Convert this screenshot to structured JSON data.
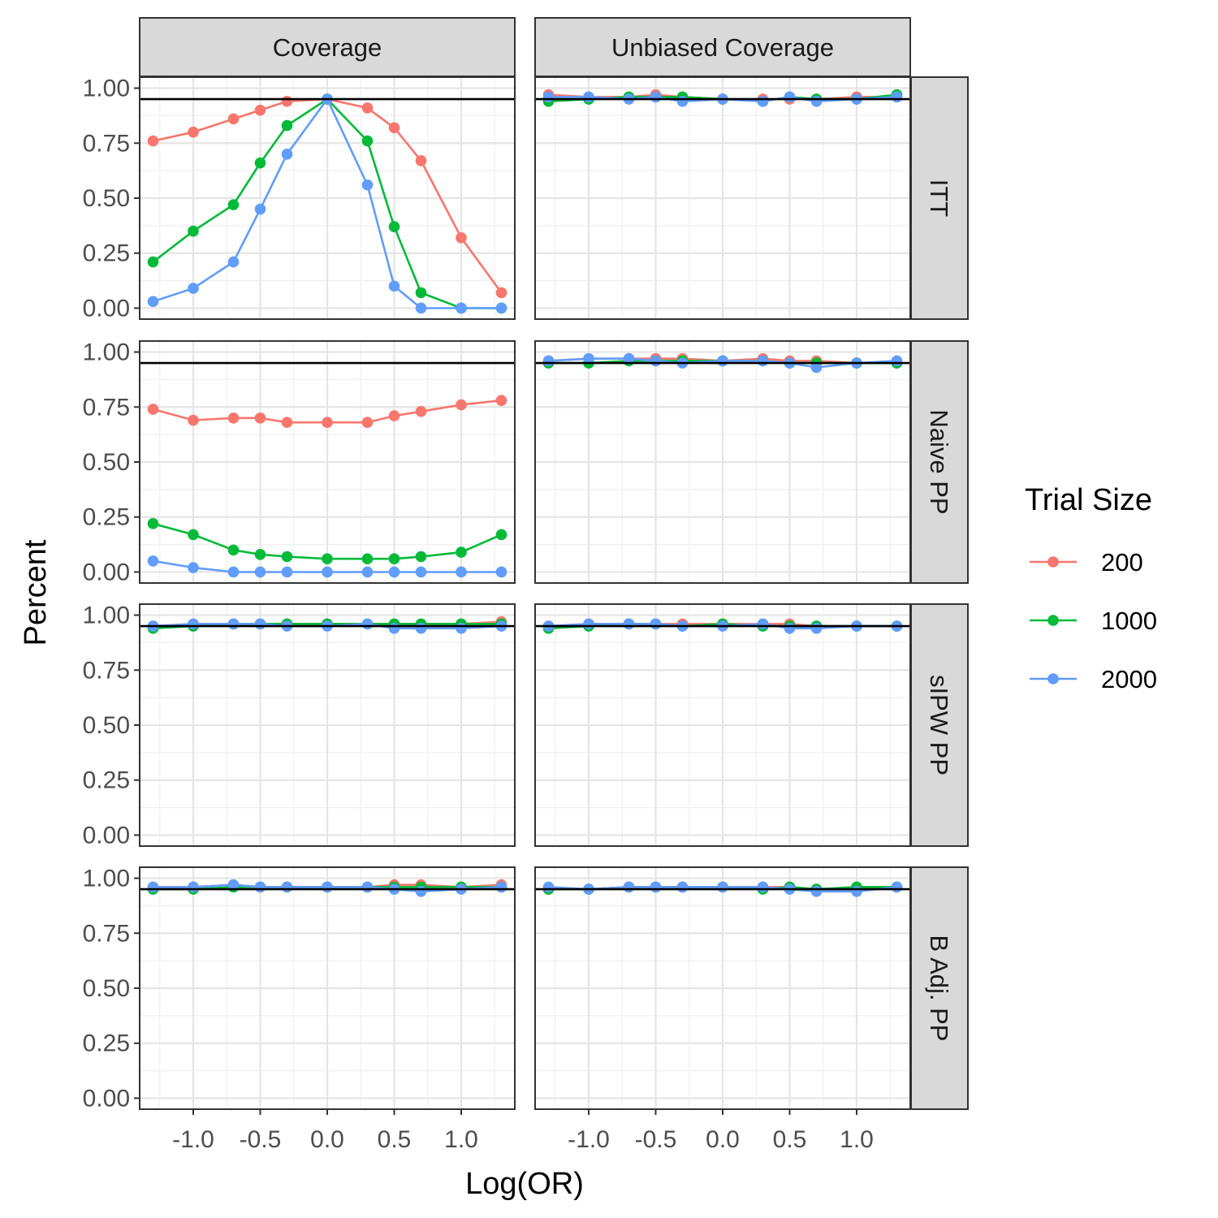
{
  "chart_data": {
    "type": "line",
    "xlabel": "Log(OR)",
    "ylabel": "Percent",
    "x_ticks": [
      "-1.0",
      "-0.5",
      "0.0",
      "0.5",
      "1.0"
    ],
    "x_tick_values": [
      -1.0,
      -0.5,
      0.0,
      0.5,
      1.0
    ],
    "y_ticks": [
      "0.00",
      "0.25",
      "0.50",
      "0.75",
      "1.00"
    ],
    "y_tick_values": [
      0.0,
      0.25,
      0.5,
      0.75,
      1.0
    ],
    "xlim": [
      -1.4,
      1.4
    ],
    "ylim": [
      -0.05,
      1.05
    ],
    "reference_line": 0.95,
    "grid": true,
    "columns": [
      "Coverage",
      "Unbiased Coverage"
    ],
    "rows": [
      "ITT",
      "Naive PP",
      "sIPW PP",
      "B Adj. PP"
    ],
    "legend": {
      "title": "Trial Size",
      "position": "right",
      "entries": [
        {
          "label": "200",
          "color": "#F8766D"
        },
        {
          "label": "1000",
          "color": "#00BA38"
        },
        {
          "label": "2000",
          "color": "#619CFF"
        }
      ]
    },
    "x": [
      -1.3,
      -1.0,
      -0.7,
      -0.5,
      -0.3,
      0.0,
      0.3,
      0.5,
      0.7,
      1.0,
      1.3
    ],
    "panels": [
      {
        "row": "ITT",
        "col": "Coverage",
        "series": [
          {
            "name": "200",
            "values": [
              0.76,
              0.8,
              0.86,
              0.9,
              0.94,
              0.95,
              0.91,
              0.82,
              0.67,
              0.32,
              0.07
            ]
          },
          {
            "name": "1000",
            "values": [
              0.21,
              0.35,
              0.47,
              0.66,
              0.83,
              0.95,
              0.76,
              0.37,
              0.07,
              0.0,
              0.0
            ]
          },
          {
            "name": "2000",
            "values": [
              0.03,
              0.09,
              0.21,
              0.45,
              0.7,
              0.95,
              0.56,
              0.1,
              0.0,
              0.0,
              0.0
            ]
          }
        ]
      },
      {
        "row": "ITT",
        "col": "Unbiased Coverage",
        "series": [
          {
            "name": "200",
            "values": [
              0.97,
              0.96,
              0.96,
              0.97,
              0.96,
              0.95,
              0.95,
              0.95,
              0.95,
              0.96,
              0.96
            ]
          },
          {
            "name": "1000",
            "values": [
              0.94,
              0.95,
              0.96,
              0.96,
              0.96,
              0.95,
              0.94,
              0.96,
              0.95,
              0.95,
              0.97
            ]
          },
          {
            "name": "2000",
            "values": [
              0.96,
              0.96,
              0.95,
              0.96,
              0.94,
              0.95,
              0.94,
              0.96,
              0.94,
              0.95,
              0.96
            ]
          }
        ]
      },
      {
        "row": "Naive PP",
        "col": "Coverage",
        "series": [
          {
            "name": "200",
            "values": [
              0.74,
              0.69,
              0.7,
              0.7,
              0.68,
              0.68,
              0.68,
              0.71,
              0.73,
              0.76,
              0.78
            ]
          },
          {
            "name": "1000",
            "values": [
              0.22,
              0.17,
              0.1,
              0.08,
              0.07,
              0.06,
              0.06,
              0.06,
              0.07,
              0.09,
              0.17
            ]
          },
          {
            "name": "2000",
            "values": [
              0.05,
              0.02,
              0.0,
              0.0,
              0.0,
              0.0,
              0.0,
              0.0,
              0.0,
              0.0,
              0.0
            ]
          }
        ]
      },
      {
        "row": "Naive PP",
        "col": "Unbiased Coverage",
        "series": [
          {
            "name": "200",
            "values": [
              0.96,
              0.97,
              0.97,
              0.97,
              0.97,
              0.96,
              0.97,
              0.96,
              0.96,
              0.95,
              0.95
            ]
          },
          {
            "name": "1000",
            "values": [
              0.95,
              0.95,
              0.96,
              0.96,
              0.96,
              0.96,
              0.96,
              0.95,
              0.95,
              0.95,
              0.95
            ]
          },
          {
            "name": "2000",
            "values": [
              0.96,
              0.97,
              0.97,
              0.96,
              0.95,
              0.96,
              0.96,
              0.95,
              0.93,
              0.95,
              0.96
            ]
          }
        ]
      },
      {
        "row": "sIPW PP",
        "col": "Coverage",
        "series": [
          {
            "name": "200",
            "values": [
              0.95,
              0.96,
              0.96,
              0.96,
              0.96,
              0.96,
              0.96,
              0.96,
              0.96,
              0.96,
              0.97
            ]
          },
          {
            "name": "1000",
            "values": [
              0.94,
              0.95,
              0.96,
              0.96,
              0.96,
              0.96,
              0.96,
              0.96,
              0.96,
              0.96,
              0.96
            ]
          },
          {
            "name": "2000",
            "values": [
              0.95,
              0.96,
              0.96,
              0.96,
              0.95,
              0.95,
              0.96,
              0.94,
              0.94,
              0.94,
              0.95
            ]
          }
        ]
      },
      {
        "row": "sIPW PP",
        "col": "Unbiased Coverage",
        "series": [
          {
            "name": "200",
            "values": [
              0.95,
              0.96,
              0.96,
              0.96,
              0.96,
              0.96,
              0.96,
              0.96,
              0.95,
              0.95,
              0.95
            ]
          },
          {
            "name": "1000",
            "values": [
              0.94,
              0.95,
              0.96,
              0.96,
              0.95,
              0.96,
              0.95,
              0.95,
              0.95,
              0.95,
              0.95
            ]
          },
          {
            "name": "2000",
            "values": [
              0.95,
              0.96,
              0.96,
              0.96,
              0.95,
              0.95,
              0.96,
              0.94,
              0.94,
              0.95,
              0.95
            ]
          }
        ]
      },
      {
        "row": "B Adj. PP",
        "col": "Coverage",
        "series": [
          {
            "name": "200",
            "values": [
              0.96,
              0.96,
              0.97,
              0.96,
              0.96,
              0.96,
              0.96,
              0.97,
              0.97,
              0.96,
              0.97
            ]
          },
          {
            "name": "1000",
            "values": [
              0.95,
              0.95,
              0.96,
              0.96,
              0.96,
              0.96,
              0.96,
              0.96,
              0.96,
              0.96,
              0.96
            ]
          },
          {
            "name": "2000",
            "values": [
              0.96,
              0.96,
              0.97,
              0.96,
              0.96,
              0.96,
              0.96,
              0.95,
              0.94,
              0.95,
              0.96
            ]
          }
        ]
      },
      {
        "row": "B Adj. PP",
        "col": "Unbiased Coverage",
        "series": [
          {
            "name": "200",
            "values": [
              0.95,
              0.95,
              0.96,
              0.96,
              0.96,
              0.96,
              0.96,
              0.96,
              0.95,
              0.96,
              0.96
            ]
          },
          {
            "name": "1000",
            "values": [
              0.95,
              0.95,
              0.96,
              0.96,
              0.96,
              0.96,
              0.95,
              0.96,
              0.95,
              0.96,
              0.96
            ]
          },
          {
            "name": "2000",
            "values": [
              0.96,
              0.95,
              0.96,
              0.96,
              0.96,
              0.96,
              0.96,
              0.95,
              0.94,
              0.94,
              0.96
            ]
          }
        ]
      }
    ]
  }
}
